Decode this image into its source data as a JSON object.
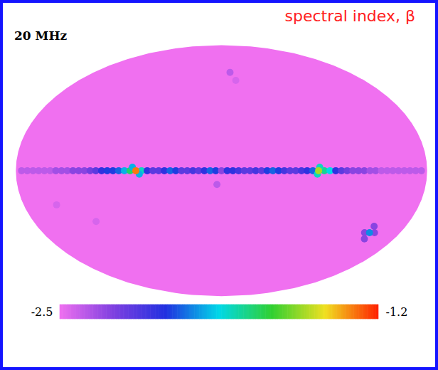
{
  "chart_data": {
    "type": "map",
    "title": "spectral index, β",
    "subtitle": "20 MHz",
    "background": -2.5,
    "points": {
      "lon": [
        175,
        170,
        165,
        160,
        155,
        150,
        145,
        140,
        135,
        130,
        125,
        120,
        115,
        110,
        105,
        100,
        95,
        90,
        85,
        80,
        70,
        65,
        60,
        55,
        50,
        45,
        40,
        35,
        30,
        25,
        20,
        15,
        10,
        5,
        0,
        -5,
        -10,
        -15,
        -20,
        -25,
        -30,
        -35,
        -40,
        -45,
        -50,
        -55,
        -60,
        -65,
        -70,
        -75,
        -80,
        -90,
        -95,
        -100,
        -105,
        -110,
        -115,
        -120,
        -125,
        -130,
        -135,
        -140,
        -145,
        -150,
        -155,
        -160,
        -165,
        -170,
        -175,
        78,
        72,
        -86,
        -84,
        -144,
        -154,
        -149,
        -149,
        -12,
        -18,
        4,
        120,
        150,
        -149,
        75,
        -85
      ],
      "lat": [
        0,
        0,
        0,
        0,
        0,
        0,
        0,
        0,
        0,
        0,
        0,
        0,
        0,
        0,
        0,
        0,
        0,
        0,
        0,
        0,
        0,
        0,
        0,
        0,
        0,
        0,
        0,
        0,
        0,
        0,
        0,
        0,
        0,
        0,
        0,
        0,
        0,
        0,
        0,
        0,
        0,
        0,
        0,
        0,
        0,
        0,
        0,
        0,
        0,
        0,
        0,
        0,
        0,
        0,
        0,
        0,
        0,
        0,
        0,
        0,
        0,
        0,
        0,
        0,
        0,
        0,
        0,
        0,
        0,
        2,
        -2,
        2,
        -2,
        -37,
        -37,
        -33,
        -41,
        62,
        56,
        -8,
        -30,
        -20,
        -37,
        0,
        0
      ],
      "values": [
        -2.4,
        -2.4,
        -2.4,
        -2.4,
        -2.4,
        -2.4,
        -2.35,
        -2.35,
        -2.35,
        -2.3,
        -2.3,
        -2.3,
        -2.25,
        -2.2,
        -2.1,
        -2.05,
        -2.05,
        -2.0,
        -1.9,
        -1.7,
        -1.8,
        -2.1,
        -2.2,
        -2.2,
        -2.1,
        -2.0,
        -2.05,
        -2.2,
        -2.2,
        -2.15,
        -2.2,
        -2.1,
        -2.0,
        -2.05,
        -2.3,
        -2.1,
        -2.1,
        -2.15,
        -2.2,
        -2.2,
        -2.15,
        -2.2,
        -2.05,
        -2.0,
        -2.05,
        -2.15,
        -2.2,
        -2.2,
        -2.15,
        -2.1,
        -2.0,
        -1.75,
        -1.85,
        -2.1,
        -2.2,
        -2.25,
        -2.3,
        -2.3,
        -2.3,
        -2.35,
        -2.35,
        -2.4,
        -2.4,
        -2.4,
        -2.4,
        -2.4,
        -2.4,
        -2.4,
        -2.4,
        -1.9,
        -1.9,
        -1.8,
        -1.8,
        -2.3,
        -2.3,
        -2.3,
        -2.3,
        -2.4,
        -2.45,
        -2.4,
        -2.45,
        -2.45,
        -1.95,
        -1.3,
        -1.5
      ]
    },
    "colorbar": {
      "range": [
        -2.5,
        -1.2
      ],
      "ticks": [
        -2.5,
        -1.2
      ],
      "colors": [
        "#f070f0",
        "#8040e0",
        "#2030e0",
        "#00d8e8",
        "#30d030",
        "#f0e020",
        "#ff2000"
      ]
    }
  }
}
